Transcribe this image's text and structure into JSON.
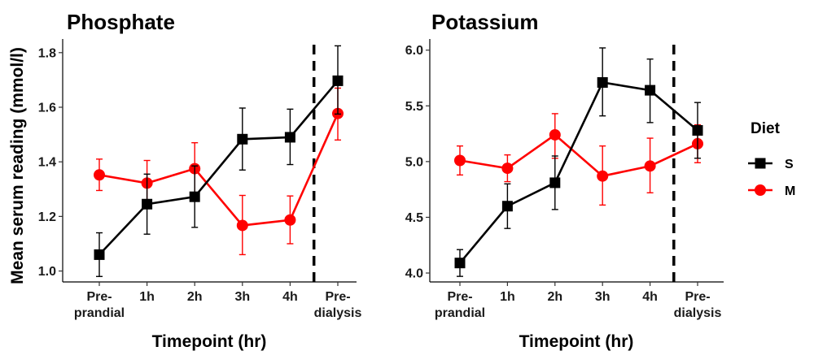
{
  "ylabel": "Mean serum reading (mmol/l)",
  "legend": {
    "title": "Diet",
    "entries": [
      {
        "name": "S",
        "color": "#000000",
        "marker": "square"
      },
      {
        "name": "M",
        "color": "#ff0000",
        "marker": "circle"
      }
    ]
  },
  "chart_data": [
    {
      "type": "line",
      "title": "Phosphate",
      "xlabel": "Timepoint (hr)",
      "ylabel": "Mean serum reading (mmol/l)",
      "categories": [
        [
          "Pre-",
          "prandial"
        ],
        [
          "1h"
        ],
        [
          "2h"
        ],
        [
          "3h"
        ],
        [
          "4h"
        ],
        [
          "Pre-",
          "dialysis"
        ]
      ],
      "ylim": [
        0.96,
        1.85
      ],
      "yticks": [
        1.0,
        1.2,
        1.4,
        1.6,
        1.8
      ],
      "ytick_labels": [
        "1.0",
        "1.2",
        "1.4",
        "1.6",
        "1.8"
      ],
      "vline_between": [
        4,
        5
      ],
      "series": [
        {
          "name": "S",
          "color": "#000000",
          "marker": "square",
          "values": [
            1.06,
            1.245,
            1.272,
            1.483,
            1.49,
            1.697
          ],
          "lower": [
            0.98,
            1.135,
            1.16,
            1.37,
            1.39,
            1.575
          ],
          "upper": [
            1.14,
            1.355,
            1.385,
            1.597,
            1.593,
            1.825
          ]
        },
        {
          "name": "M",
          "color": "#ff0000",
          "marker": "circle",
          "values": [
            1.352,
            1.322,
            1.375,
            1.167,
            1.187,
            1.577
          ],
          "lower": [
            1.295,
            1.255,
            1.285,
            1.06,
            1.1,
            1.48
          ],
          "upper": [
            1.41,
            1.405,
            1.47,
            1.277,
            1.275,
            1.67
          ]
        }
      ]
    },
    {
      "type": "line",
      "title": "Potassium",
      "xlabel": "Timepoint (hr)",
      "ylabel": "",
      "categories": [
        [
          "Pre-",
          "prandial"
        ],
        [
          "1h"
        ],
        [
          "2h"
        ],
        [
          "3h"
        ],
        [
          "4h"
        ],
        [
          "Pre-",
          "dialysis"
        ]
      ],
      "ylim": [
        3.92,
        6.1
      ],
      "yticks": [
        4.0,
        4.5,
        5.0,
        5.5,
        6.0
      ],
      "ytick_labels": [
        "4.0",
        "4.5",
        "5.0",
        "5.5",
        "6.0"
      ],
      "vline_between": [
        4,
        5
      ],
      "series": [
        {
          "name": "S",
          "color": "#000000",
          "marker": "square",
          "values": [
            4.09,
            4.6,
            4.81,
            5.71,
            5.64,
            5.28
          ],
          "lower": [
            3.97,
            4.4,
            4.57,
            5.41,
            5.35,
            5.03
          ],
          "upper": [
            4.21,
            4.8,
            5.05,
            6.02,
            5.92,
            5.53
          ]
        },
        {
          "name": "M",
          "color": "#ff0000",
          "marker": "circle",
          "values": [
            5.01,
            4.94,
            5.24,
            4.87,
            4.96,
            5.16
          ],
          "lower": [
            4.88,
            4.82,
            5.03,
            4.61,
            4.72,
            4.99
          ],
          "upper": [
            5.14,
            5.06,
            5.43,
            5.14,
            5.21,
            5.33
          ]
        }
      ]
    }
  ]
}
